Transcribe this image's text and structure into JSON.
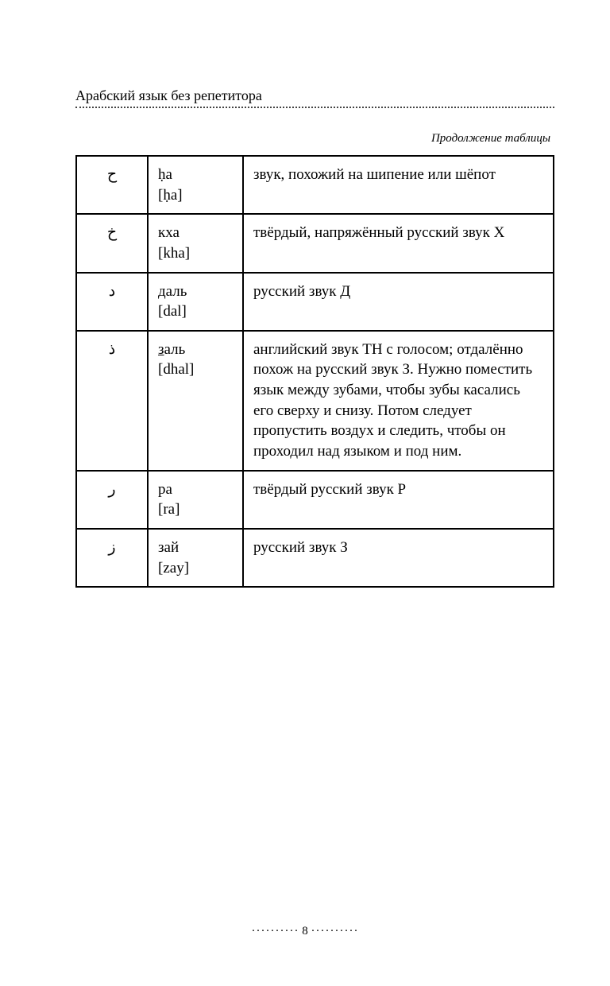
{
  "header": {
    "title": "Арабский язык без репетитора"
  },
  "continuation_label": "Продолжение таблицы",
  "table": {
    "rows": [
      {
        "arabic": "ح",
        "name_line1": "ḥа",
        "name_line2": "[ḥа]",
        "description": "звук, похожий на шипение или шёпот"
      },
      {
        "arabic": "خ",
        "name_line1": "кха",
        "name_line2": "[kha]",
        "description": "твёрдый, напряжённый русский звук Х"
      },
      {
        "arabic": "د",
        "name_line1": "даль",
        "name_line2": "[dal]",
        "description": "русский звук Д"
      },
      {
        "arabic": "ذ",
        "name_underlined_char": "з",
        "name_line1_rest": "аль",
        "name_line2": "[dhal]",
        "description": "английский звук TH с голосом; отдалённо похож на русский звук З. Нужно поместить язык между зубами, чтобы зубы касались его сверху и снизу. Потом следует пропустить воздух и следить, чтобы он проходил над языком и под ним."
      },
      {
        "arabic": "ر",
        "name_line1": "ра",
        "name_line2": "[ra]",
        "description": "твёрдый русский звук Р"
      },
      {
        "arabic": "ز",
        "name_line1": "зай",
        "name_line2": "[zay]",
        "description": "русский звук З"
      }
    ]
  },
  "page_number": "8",
  "colors": {
    "text": "#000000",
    "background": "#ffffff",
    "border": "#000000",
    "dotted": "#444444"
  }
}
